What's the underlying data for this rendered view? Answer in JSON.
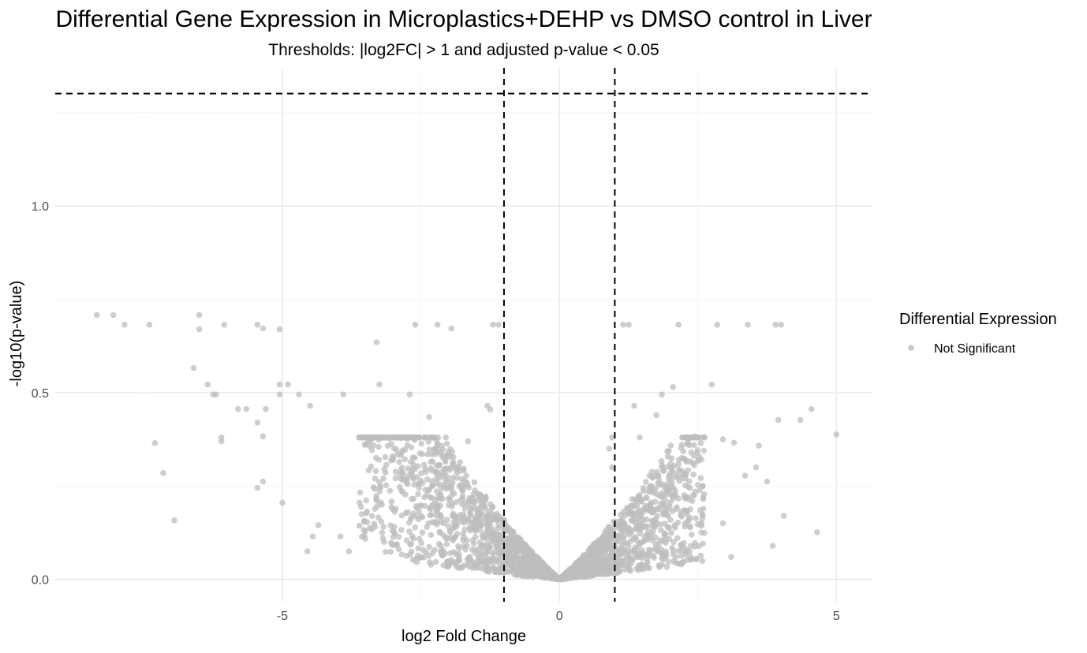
{
  "colors": {
    "background": "#ffffff",
    "grid_major": "#ebebeb",
    "grid_minor": "#f5f5f5",
    "point": "#bebebe",
    "threshold_line": "#000000"
  },
  "chart_data": {
    "type": "scatter",
    "title": "Differential Gene Expression in Microplastics+DEHP vs DMSO control in Liver",
    "subtitle": "Thresholds: |log2FC| > 1 and adjusted p-value < 0.05",
    "xlabel": "log2 Fold Change",
    "ylabel": "-log10(p-value)",
    "xlim": [
      -9.1,
      5.65
    ],
    "ylim": [
      -0.06,
      1.37
    ],
    "x_ticks": [
      -5,
      0,
      5
    ],
    "x_tick_labels": [
      "-5",
      "0",
      "5"
    ],
    "y_ticks": [
      0.0,
      0.5,
      1.0
    ],
    "y_tick_labels": [
      "0.0",
      "0.5",
      "1.0"
    ],
    "grid": true,
    "legend": {
      "title": "Differential Expression",
      "placement": "right",
      "entries": [
        {
          "label": "Not Significant",
          "color": "#bebebe"
        }
      ]
    },
    "threshold_lines": {
      "vertical_x": [
        -1,
        1
      ],
      "horizontal_y": 1.301
    },
    "series": [
      {
        "label": "Not Significant",
        "color": "#bebebe",
        "points": [
          [
            -8.35,
            0.708
          ],
          [
            -8.05,
            0.708
          ],
          [
            -7.85,
            0.682
          ],
          [
            -7.4,
            0.682
          ],
          [
            -6.5,
            0.708
          ],
          [
            -6.5,
            0.67
          ],
          [
            -6.05,
            0.682
          ],
          [
            -5.45,
            0.682
          ],
          [
            -5.35,
            0.672
          ],
          [
            -5.05,
            0.67
          ],
          [
            -3.3,
            0.635
          ],
          [
            -2.6,
            0.682
          ],
          [
            -2.2,
            0.682
          ],
          [
            -1.95,
            0.672
          ],
          [
            -1.2,
            0.682
          ],
          [
            -1.1,
            0.682
          ],
          [
            1.15,
            0.682
          ],
          [
            1.25,
            0.682
          ],
          [
            2.15,
            0.682
          ],
          [
            2.85,
            0.682
          ],
          [
            3.4,
            0.682
          ],
          [
            3.9,
            0.682
          ],
          [
            4.0,
            0.682
          ],
          [
            2.75,
            0.522
          ],
          [
            2.05,
            0.515
          ],
          [
            1.85,
            0.495
          ],
          [
            -6.6,
            0.566
          ],
          [
            -6.35,
            0.522
          ],
          [
            -6.2,
            0.495
          ],
          [
            -5.05,
            0.522
          ],
          [
            -4.9,
            0.522
          ],
          [
            -3.25,
            0.522
          ],
          [
            -2.7,
            0.495
          ],
          [
            -4.5,
            0.465
          ],
          [
            -6.25,
            0.495
          ],
          [
            -5.05,
            0.495
          ],
          [
            -4.7,
            0.495
          ],
          [
            -3.9,
            0.495
          ],
          [
            -5.8,
            0.456
          ],
          [
            -5.65,
            0.456
          ],
          [
            -6.1,
            0.38
          ],
          [
            -6.1,
            0.37
          ],
          [
            -5.45,
            0.42
          ],
          [
            -5.3,
            0.456
          ],
          [
            -5.35,
            0.383
          ],
          [
            -7.3,
            0.365
          ],
          [
            -7.15,
            0.285
          ],
          [
            -6.95,
            0.158
          ],
          [
            -5.35,
            0.262
          ],
          [
            -5.45,
            0.245
          ],
          [
            -5.0,
            0.205
          ],
          [
            -4.55,
            0.075
          ],
          [
            -4.45,
            0.115
          ],
          [
            -4.35,
            0.145
          ],
          [
            -3.95,
            0.115
          ],
          [
            -3.8,
            0.075
          ],
          [
            4.35,
            0.427
          ],
          [
            4.55,
            0.456
          ],
          [
            5.0,
            0.388
          ],
          [
            4.65,
            0.126
          ],
          [
            3.95,
            0.427
          ],
          [
            3.6,
            0.358
          ],
          [
            3.75,
            0.262
          ],
          [
            3.55,
            0.3
          ],
          [
            3.35,
            0.278
          ],
          [
            2.95,
            0.375
          ],
          [
            3.15,
            0.366
          ],
          [
            2.55,
            0.365
          ],
          [
            2.45,
            0.383
          ],
          [
            -2.35,
            0.435
          ],
          [
            -2.05,
            0.38
          ],
          [
            -1.65,
            0.37
          ],
          [
            -1.3,
            0.465
          ],
          [
            -1.25,
            0.455
          ],
          [
            1.75,
            0.44
          ],
          [
            1.35,
            0.465
          ],
          [
            0.95,
            0.38
          ],
          [
            0.9,
            0.35
          ],
          [
            1.45,
            0.38
          ],
          [
            0.95,
            0.3
          ],
          [
            2.4,
            0.21
          ],
          [
            2.95,
            0.15
          ],
          [
            3.1,
            0.06
          ],
          [
            2.2,
            0.04
          ],
          [
            4.05,
            0.17
          ],
          [
            3.85,
            0.09
          ]
        ]
      }
    ]
  }
}
